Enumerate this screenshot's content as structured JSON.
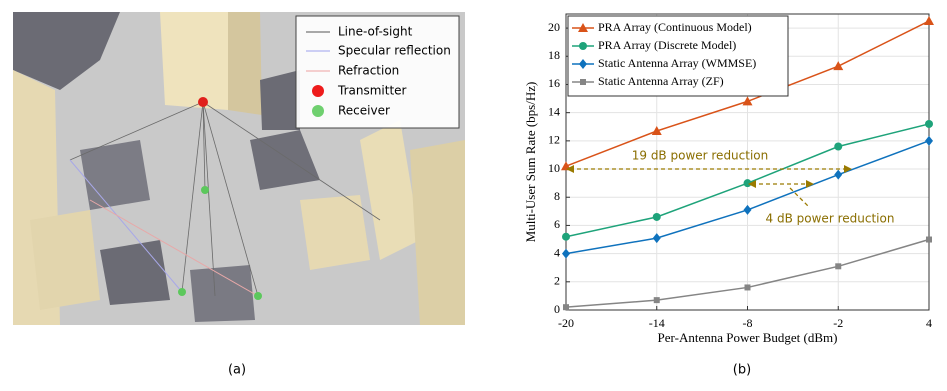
{
  "chart_data": {
    "type": "line",
    "x": [
      -20,
      -14,
      -8,
      -2,
      4
    ],
    "xlim": [
      -20,
      4
    ],
    "xticks": [
      -20,
      -14,
      -8,
      -2,
      4
    ],
    "ylim": [
      0,
      21
    ],
    "yticks": [
      0,
      2,
      4,
      6,
      8,
      10,
      12,
      14,
      16,
      18,
      20
    ],
    "xlabel": "Per-Antenna Power Budget (dBm)",
    "ylabel": "Multi-User Sum Rate (bps/Hz)",
    "grid": true,
    "legend": "upper left",
    "series": [
      {
        "name": "PRA Array (Continuous Model)",
        "color": "#d95319",
        "marker": "triangle",
        "values": [
          10.2,
          12.7,
          14.8,
          17.3,
          20.5
        ]
      },
      {
        "name": "PRA Array (Discrete Model)",
        "color": "#1ea37a",
        "marker": "circle",
        "values": [
          5.2,
          6.6,
          9.0,
          11.6,
          13.2
        ]
      },
      {
        "name": "Static Antenna Array (WMMSE)",
        "color": "#0f72bd",
        "marker": "diamond",
        "values": [
          4.0,
          5.1,
          7.1,
          9.6,
          12.0
        ]
      },
      {
        "name": "Static Antenna Array (ZF)",
        "color": "#858585",
        "marker": "square",
        "values": [
          0.2,
          0.7,
          1.6,
          3.1,
          5.0
        ]
      }
    ],
    "annotations": [
      "19 dB power reduction",
      "4 dB power reduction"
    ]
  },
  "scene": {
    "legend": [
      "Line-of-sight",
      "Specular reflection",
      "Refraction",
      "Transmitter",
      "Receiver"
    ]
  },
  "captions": [
    "(a)",
    "(b)"
  ]
}
